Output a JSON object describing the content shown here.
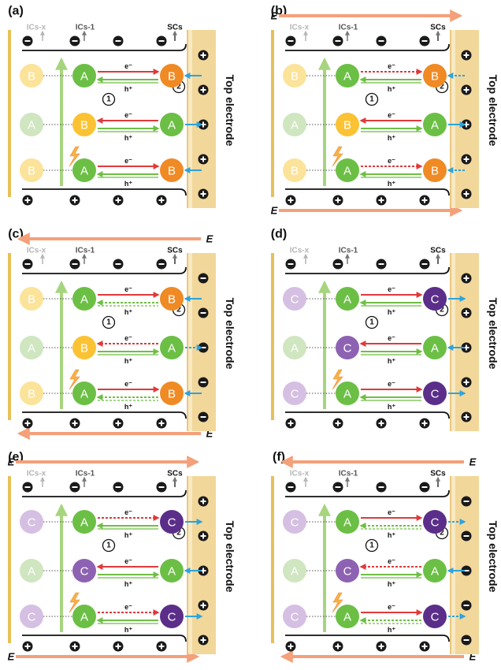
{
  "labels": {
    "top_electrode": "Top electrode",
    "ics_x": "ICs-x",
    "ics_1": "ICs-1",
    "scs": "SCs",
    "electron": "e⁻",
    "hole": "h⁺",
    "field": "E",
    "region1": "1",
    "region2": "2",
    "minus": "−",
    "plus": "+"
  },
  "colors": {
    "electrode": "#f2d79a",
    "electrode_edge": "#f8e9c2",
    "left_bar": "#e6c15a",
    "field_arrow": "#f4a07a",
    "green_arrow": "#a7d57f",
    "red_arrow": "#e0393b",
    "green_transfer": "#6fbe44",
    "blue_arrow": "#2ea3dc",
    "A": "#6cbf45",
    "A_light": "#cfe6c0",
    "B": "#ef8a24",
    "B_light": "#fbe39a",
    "B_mid": "#fbc233",
    "C": "#5b2e8a",
    "C_light": "#d5bfe2",
    "C_mid": "#8e62b2"
  },
  "panels": [
    {
      "label": "(a)",
      "field": "none",
      "top_charges": [
        "minus",
        "minus",
        "minus",
        "minus"
      ],
      "bottom_charges": [
        "plus",
        "plus",
        "plus",
        "plus"
      ],
      "right_charges": [
        "plus",
        "plus",
        "plus",
        "plus",
        "plus"
      ],
      "rows": [
        {
          "left": "B",
          "left_style": "light",
          "mid": "A",
          "mid_style": "full",
          "right": "B",
          "right_style": "full",
          "e_dir": "right",
          "e_dotted": false,
          "h_dotted": false,
          "blue_dir": "in",
          "blue_dotted": false
        },
        {
          "left": "A",
          "left_style": "light",
          "mid": "B",
          "mid_style": "mid",
          "right": "A",
          "right_style": "full",
          "e_dir": "left",
          "e_dotted": false,
          "h_dotted": false,
          "blue_dir": "out",
          "blue_dotted": false
        },
        {
          "left": "B",
          "left_style": "light",
          "mid": "A",
          "mid_style": "full",
          "right": "B",
          "right_style": "full",
          "e_dir": "right",
          "e_dotted": false,
          "h_dotted": false,
          "blue_dir": "in",
          "blue_dotted": false
        }
      ]
    },
    {
      "label": "(b)",
      "field": "right",
      "top_charges": [
        "minus",
        "minus",
        "minus",
        "minus"
      ],
      "bottom_charges": [
        "plus",
        "plus",
        "plus",
        "plus"
      ],
      "right_charges": [
        "plus",
        "plus",
        "plus",
        "plus",
        "plus"
      ],
      "rows": [
        {
          "left": "B",
          "left_style": "light",
          "mid": "A",
          "mid_style": "full",
          "right": "B",
          "right_style": "full",
          "e_dir": "right",
          "e_dotted": true,
          "h_dotted": false,
          "blue_dir": "in",
          "blue_dotted": true
        },
        {
          "left": "A",
          "left_style": "light",
          "mid": "B",
          "mid_style": "mid",
          "right": "A",
          "right_style": "full",
          "e_dir": "left",
          "e_dotted": false,
          "h_dotted": false,
          "blue_dir": "out",
          "blue_dotted": false
        },
        {
          "left": "B",
          "left_style": "light",
          "mid": "A",
          "mid_style": "full",
          "right": "B",
          "right_style": "full",
          "e_dir": "right",
          "e_dotted": true,
          "h_dotted": false,
          "blue_dir": "in",
          "blue_dotted": true
        }
      ]
    },
    {
      "label": "(c)",
      "field": "left",
      "top_charges": [
        "minus",
        "minus",
        "minus",
        "minus"
      ],
      "bottom_charges": [
        "plus",
        "plus",
        "plus",
        "plus"
      ],
      "right_charges": [
        "minus",
        "minus",
        "minus",
        "minus",
        "minus"
      ],
      "rows": [
        {
          "left": "B",
          "left_style": "light",
          "mid": "A",
          "mid_style": "full",
          "right": "B",
          "right_style": "full",
          "e_dir": "right",
          "e_dotted": false,
          "h_dotted": true,
          "blue_dir": "in",
          "blue_dotted": false
        },
        {
          "left": "A",
          "left_style": "light",
          "mid": "B",
          "mid_style": "mid",
          "right": "A",
          "right_style": "full",
          "e_dir": "left",
          "e_dotted": true,
          "h_dotted": false,
          "blue_dir": "out",
          "blue_dotted": true
        },
        {
          "left": "B",
          "left_style": "light",
          "mid": "A",
          "mid_style": "full",
          "right": "B",
          "right_style": "full",
          "e_dir": "right",
          "e_dotted": false,
          "h_dotted": true,
          "blue_dir": "in",
          "blue_dotted": false
        }
      ]
    },
    {
      "label": "(d)",
      "field": "none",
      "top_charges": [
        "minus",
        "minus",
        "minus",
        "minus"
      ],
      "bottom_charges": [
        "plus",
        "plus",
        "plus",
        "plus"
      ],
      "right_charges": [
        "plus",
        "plus",
        "plus",
        "plus",
        "plus"
      ],
      "rows": [
        {
          "left": "C",
          "left_style": "light",
          "mid": "A",
          "mid_style": "full",
          "right": "C",
          "right_style": "full",
          "e_dir": "right",
          "e_dotted": false,
          "h_dotted": false,
          "blue_dir": "out",
          "blue_dotted": false
        },
        {
          "left": "A",
          "left_style": "light",
          "mid": "C",
          "mid_style": "mid",
          "right": "A",
          "right_style": "full",
          "e_dir": "left",
          "e_dotted": false,
          "h_dotted": false,
          "blue_dir": "in",
          "blue_dotted": false
        },
        {
          "left": "C",
          "left_style": "light",
          "mid": "A",
          "mid_style": "full",
          "right": "C",
          "right_style": "full",
          "e_dir": "right",
          "e_dotted": false,
          "h_dotted": false,
          "blue_dir": "out",
          "blue_dotted": false
        }
      ]
    },
    {
      "label": "(e)",
      "field": "right",
      "top_charges": [
        "minus",
        "minus",
        "minus",
        "minus"
      ],
      "bottom_charges": [
        "plus",
        "plus",
        "plus",
        "plus"
      ],
      "right_charges": [
        "plus",
        "plus",
        "plus",
        "plus",
        "plus"
      ],
      "rows": [
        {
          "left": "C",
          "left_style": "light",
          "mid": "A",
          "mid_style": "full",
          "right": "C",
          "right_style": "full",
          "e_dir": "right",
          "e_dotted": true,
          "h_dotted": false,
          "blue_dir": "out",
          "blue_dotted": false
        },
        {
          "left": "A",
          "left_style": "light",
          "mid": "C",
          "mid_style": "mid",
          "right": "A",
          "right_style": "full",
          "e_dir": "left",
          "e_dotted": false,
          "h_dotted": false,
          "blue_dir": "in",
          "blue_dotted": false
        },
        {
          "left": "C",
          "left_style": "light",
          "mid": "A",
          "mid_style": "full",
          "right": "C",
          "right_style": "full",
          "e_dir": "right",
          "e_dotted": true,
          "h_dotted": false,
          "blue_dir": "out",
          "blue_dotted": false
        }
      ]
    },
    {
      "label": "(f)",
      "field": "left",
      "top_charges": [
        "minus",
        "minus",
        "minus",
        "minus"
      ],
      "bottom_charges": [
        "plus",
        "plus",
        "plus",
        "plus"
      ],
      "right_charges": [
        "minus",
        "minus",
        "minus",
        "minus",
        "minus"
      ],
      "rows": [
        {
          "left": "C",
          "left_style": "light",
          "mid": "A",
          "mid_style": "full",
          "right": "C",
          "right_style": "full",
          "e_dir": "right",
          "e_dotted": false,
          "h_dotted": true,
          "blue_dir": "out",
          "blue_dotted": true
        },
        {
          "left": "A",
          "left_style": "light",
          "mid": "C",
          "mid_style": "mid",
          "right": "A",
          "right_style": "full",
          "e_dir": "left",
          "e_dotted": true,
          "h_dotted": false,
          "blue_dir": "in",
          "blue_dotted": false
        },
        {
          "left": "C",
          "left_style": "light",
          "mid": "A",
          "mid_style": "full",
          "right": "C",
          "right_style": "full",
          "e_dir": "right",
          "e_dotted": false,
          "h_dotted": true,
          "blue_dir": "out",
          "blue_dotted": true
        }
      ]
    }
  ]
}
